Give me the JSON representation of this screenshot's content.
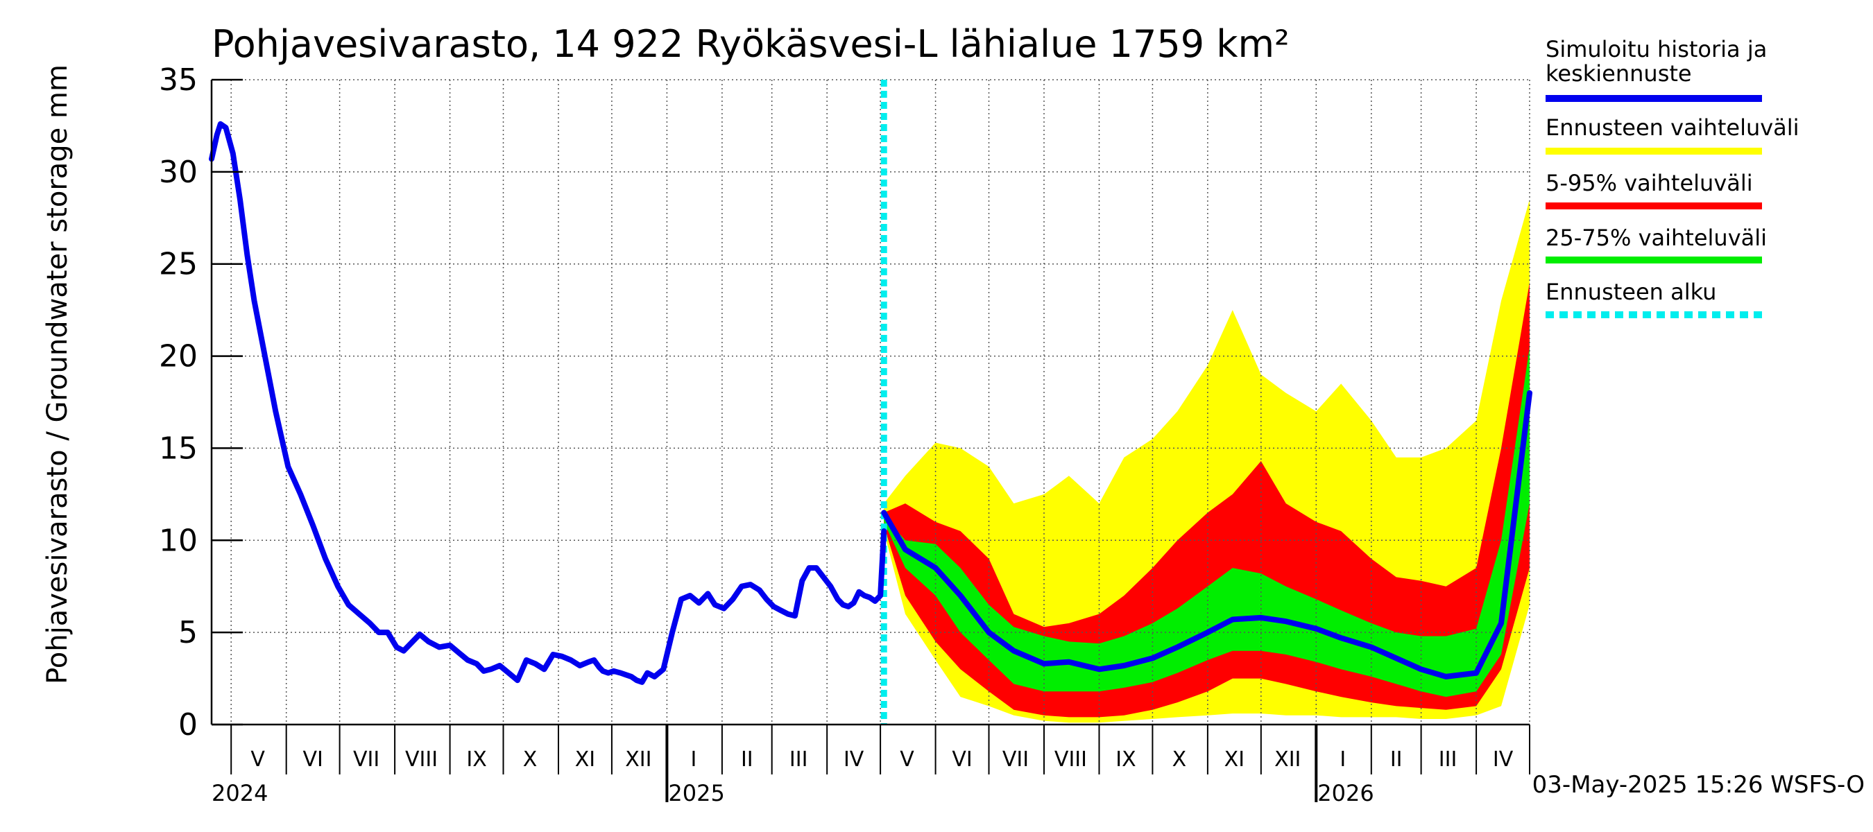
{
  "chart_data": {
    "type": "area",
    "title": "Pohjavesivarasto, 14 922 Ryökäsvesi-L lähialue 1759 km²",
    "ylabel": "Pohjavesivarasto / Groundwater storage   mm",
    "ylim": [
      0,
      35
    ],
    "yticks": [
      0,
      5,
      10,
      15,
      20,
      25,
      30,
      35
    ],
    "xlim": [
      "2024-04-20",
      "2026-05-01"
    ],
    "grid": true,
    "legend_position": "right",
    "footer": "03-May-2025 15:26 WSFS-O",
    "colors": {
      "history": "#0000ee",
      "range_full": "#ffff00",
      "range_5_95": "#ff0000",
      "range_25_75": "#00ee00",
      "forecast_start": "#00eeee"
    },
    "legend": [
      {
        "key": "history",
        "label": "Simuloitu historia ja keskiennuste",
        "lines": [
          "Simuloitu historia ja",
          "keskiennuste"
        ],
        "color": "#0000ee",
        "style": "solid"
      },
      {
        "key": "range_full",
        "label": "Ennusteen vaihteluväli",
        "lines": [
          "Ennusteen vaihteluväli"
        ],
        "color": "#ffff00",
        "style": "solid"
      },
      {
        "key": "range_5_95",
        "label": "5-95% vaihteluväli",
        "lines": [
          "5-95% vaihteluväli"
        ],
        "color": "#ff0000",
        "style": "solid"
      },
      {
        "key": "range_25_75",
        "label": "25-75% vaihteluväli",
        "lines": [
          "25-75% vaihteluväli"
        ],
        "color": "#00ee00",
        "style": "solid"
      },
      {
        "key": "forecast_start",
        "label": "Ennusteen alku",
        "lines": [
          "Ennusteen alku"
        ],
        "color": "#00eeee",
        "style": "dashed"
      }
    ],
    "month_labels": [
      {
        "label": "V",
        "date": "2024-05-16"
      },
      {
        "label": "VI",
        "date": "2024-06-16"
      },
      {
        "label": "VII",
        "date": "2024-07-16"
      },
      {
        "label": "VIII",
        "date": "2024-08-16"
      },
      {
        "label": "IX",
        "date": "2024-09-16"
      },
      {
        "label": "X",
        "date": "2024-10-16"
      },
      {
        "label": "XI",
        "date": "2024-11-16"
      },
      {
        "label": "XII",
        "date": "2024-12-16"
      },
      {
        "label": "I",
        "date": "2025-01-16"
      },
      {
        "label": "II",
        "date": "2025-02-15"
      },
      {
        "label": "III",
        "date": "2025-03-16"
      },
      {
        "label": "IV",
        "date": "2025-04-16"
      },
      {
        "label": "V",
        "date": "2025-05-16"
      },
      {
        "label": "VI",
        "date": "2025-06-16"
      },
      {
        "label": "VII",
        "date": "2025-07-16"
      },
      {
        "label": "VIII",
        "date": "2025-08-16"
      },
      {
        "label": "IX",
        "date": "2025-09-16"
      },
      {
        "label": "X",
        "date": "2025-10-16"
      },
      {
        "label": "XI",
        "date": "2025-11-16"
      },
      {
        "label": "XII",
        "date": "2025-12-16"
      },
      {
        "label": "I",
        "date": "2026-01-16"
      },
      {
        "label": "II",
        "date": "2026-02-15"
      },
      {
        "label": "III",
        "date": "2026-03-16"
      },
      {
        "label": "IV",
        "date": "2026-04-16"
      }
    ],
    "month_boundaries": [
      "2024-05-01",
      "2024-06-01",
      "2024-07-01",
      "2024-08-01",
      "2024-09-01",
      "2024-10-01",
      "2024-11-01",
      "2024-12-01",
      "2025-01-01",
      "2025-02-01",
      "2025-03-01",
      "2025-04-01",
      "2025-05-01",
      "2025-06-01",
      "2025-07-01",
      "2025-08-01",
      "2025-09-01",
      "2025-10-01",
      "2025-11-01",
      "2025-12-01",
      "2026-01-01",
      "2026-02-01",
      "2026-03-01",
      "2026-04-01",
      "2026-05-01"
    ],
    "year_labels": [
      {
        "label": "2024",
        "date": "2024-04-20"
      },
      {
        "label": "2025",
        "date": "2025-01-01"
      },
      {
        "label": "2026",
        "date": "2026-01-01"
      }
    ],
    "forecast_start": "2025-05-03",
    "series": {
      "history": {
        "name": "Simuloitu historia ja keskiennuste",
        "x": [
          "2024-04-20",
          "2024-04-23",
          "2024-04-25",
          "2024-04-28",
          "2024-05-02",
          "2024-05-06",
          "2024-05-10",
          "2024-05-14",
          "2024-05-20",
          "2024-05-26",
          "2024-06-02",
          "2024-06-09",
          "2024-06-16",
          "2024-06-23",
          "2024-06-30",
          "2024-07-06",
          "2024-07-12",
          "2024-07-18",
          "2024-07-23",
          "2024-07-28",
          "2024-08-02",
          "2024-08-06",
          "2024-08-10",
          "2024-08-15",
          "2024-08-20",
          "2024-08-26",
          "2024-09-01",
          "2024-09-06",
          "2024-09-11",
          "2024-09-16",
          "2024-09-20",
          "2024-09-24",
          "2024-09-29",
          "2024-10-04",
          "2024-10-09",
          "2024-10-14",
          "2024-10-19",
          "2024-10-24",
          "2024-10-29",
          "2024-11-03",
          "2024-11-08",
          "2024-11-13",
          "2024-11-18",
          "2024-11-21",
          "2024-11-24",
          "2024-11-26",
          "2024-11-29",
          "2024-12-02",
          "2024-12-06",
          "2024-12-09",
          "2024-12-12",
          "2024-12-15",
          "2024-12-18",
          "2024-12-21",
          "2024-12-25",
          "2024-12-30",
          "2025-01-04",
          "2025-01-09",
          "2025-01-14",
          "2025-01-19",
          "2025-01-24",
          "2025-01-28",
          "2025-02-02",
          "2025-02-07",
          "2025-02-12",
          "2025-02-17",
          "2025-02-22",
          "2025-02-26",
          "2025-03-02",
          "2025-03-06",
          "2025-03-10",
          "2025-03-14",
          "2025-03-18",
          "2025-03-22",
          "2025-03-26",
          "2025-03-30",
          "2025-04-03",
          "2025-04-07",
          "2025-04-10",
          "2025-04-13",
          "2025-04-16",
          "2025-04-19",
          "2025-04-22",
          "2025-04-25",
          "2025-04-28",
          "2025-05-01",
          "2025-05-03"
        ],
        "y": [
          30.7,
          32.0,
          32.6,
          32.4,
          31.0,
          28.5,
          25.5,
          23.0,
          20.0,
          17.0,
          14.0,
          12.5,
          10.8,
          9.0,
          7.5,
          6.5,
          6.0,
          5.5,
          5.0,
          5.0,
          4.2,
          4.0,
          4.4,
          4.9,
          4.5,
          4.2,
          4.3,
          3.9,
          3.5,
          3.3,
          2.9,
          3.0,
          3.2,
          2.8,
          2.4,
          3.5,
          3.3,
          3.0,
          3.8,
          3.7,
          3.5,
          3.2,
          3.4,
          3.5,
          3.1,
          2.9,
          2.8,
          2.9,
          2.8,
          2.7,
          2.6,
          2.4,
          2.3,
          2.8,
          2.6,
          3.0,
          5.0,
          6.8,
          7.0,
          6.6,
          7.1,
          6.5,
          6.3,
          6.8,
          7.5,
          7.6,
          7.3,
          6.8,
          6.4,
          6.2,
          6.0,
          5.9,
          7.8,
          8.5,
          8.5,
          8.0,
          7.5,
          6.8,
          6.5,
          6.4,
          6.6,
          7.2,
          7.0,
          6.9,
          6.7,
          7.0,
          10.5
        ]
      },
      "forecast_median": {
        "x": [
          "2025-05-03",
          "2025-05-15",
          "2025-06-01",
          "2025-06-15",
          "2025-07-01",
          "2025-07-15",
          "2025-08-01",
          "2025-08-15",
          "2025-09-01",
          "2025-09-15",
          "2025-10-01",
          "2025-10-15",
          "2025-11-01",
          "2025-11-15",
          "2025-12-01",
          "2025-12-15",
          "2026-01-01",
          "2026-01-15",
          "2026-02-01",
          "2026-02-15",
          "2026-03-01",
          "2026-03-15",
          "2026-04-01",
          "2026-04-15",
          "2026-05-01"
        ],
        "y": [
          11.5,
          9.5,
          8.5,
          7.0,
          5.0,
          4.0,
          3.3,
          3.4,
          3.0,
          3.2,
          3.6,
          4.2,
          5.0,
          5.7,
          5.8,
          5.6,
          5.2,
          4.7,
          4.2,
          3.6,
          3.0,
          2.6,
          2.8,
          5.5,
          18.0
        ]
      },
      "range_full": {
        "x": [
          "2025-05-03",
          "2025-05-15",
          "2025-06-01",
          "2025-06-15",
          "2025-07-01",
          "2025-07-15",
          "2025-08-01",
          "2025-08-15",
          "2025-09-01",
          "2025-09-15",
          "2025-10-01",
          "2025-10-15",
          "2025-11-01",
          "2025-11-15",
          "2025-12-01",
          "2025-12-15",
          "2026-01-01",
          "2026-01-15",
          "2026-02-01",
          "2026-02-15",
          "2026-03-01",
          "2026-03-15",
          "2026-04-01",
          "2026-04-15",
          "2026-05-01"
        ],
        "low": [
          10.5,
          6.0,
          3.5,
          1.5,
          1.0,
          0.5,
          0.2,
          0.1,
          0.1,
          0.2,
          0.3,
          0.4,
          0.5,
          0.6,
          0.6,
          0.5,
          0.5,
          0.4,
          0.4,
          0.4,
          0.3,
          0.3,
          0.5,
          1.0,
          6.5
        ],
        "high": [
          12.0,
          13.5,
          15.3,
          15.0,
          14.0,
          12.0,
          12.5,
          13.5,
          12.0,
          14.5,
          15.5,
          17.0,
          19.5,
          22.5,
          19.0,
          18.0,
          17.0,
          18.5,
          16.5,
          14.5,
          14.5,
          15.0,
          16.5,
          23.0,
          28.5
        ]
      },
      "range_5_95": {
        "x": [
          "2025-05-03",
          "2025-05-15",
          "2025-06-01",
          "2025-06-15",
          "2025-07-01",
          "2025-07-15",
          "2025-08-01",
          "2025-08-15",
          "2025-09-01",
          "2025-09-15",
          "2025-10-01",
          "2025-10-15",
          "2025-11-01",
          "2025-11-15",
          "2025-12-01",
          "2025-12-15",
          "2026-01-01",
          "2026-01-15",
          "2026-02-01",
          "2026-02-15",
          "2026-03-01",
          "2026-03-15",
          "2026-04-01",
          "2026-04-15",
          "2026-05-01"
        ],
        "low": [
          10.8,
          7.0,
          4.5,
          3.0,
          1.8,
          0.8,
          0.5,
          0.4,
          0.4,
          0.5,
          0.8,
          1.2,
          1.8,
          2.5,
          2.5,
          2.2,
          1.8,
          1.5,
          1.2,
          1.0,
          0.9,
          0.8,
          1.0,
          3.0,
          8.5
        ],
        "high": [
          11.5,
          12.0,
          11.0,
          10.5,
          9.0,
          6.0,
          5.3,
          5.5,
          6.0,
          7.0,
          8.5,
          10.0,
          11.5,
          12.5,
          14.3,
          12.0,
          11.0,
          10.5,
          9.0,
          8.0,
          7.8,
          7.5,
          8.5,
          15.0,
          24.0
        ]
      },
      "range_25_75": {
        "x": [
          "2025-05-03",
          "2025-05-15",
          "2025-06-01",
          "2025-06-15",
          "2025-07-01",
          "2025-07-15",
          "2025-08-01",
          "2025-08-15",
          "2025-09-01",
          "2025-09-15",
          "2025-10-01",
          "2025-10-15",
          "2025-11-01",
          "2025-11-15",
          "2025-12-01",
          "2025-12-15",
          "2026-01-01",
          "2026-01-15",
          "2026-02-01",
          "2026-02-15",
          "2026-03-01",
          "2026-03-15",
          "2026-04-01",
          "2026-04-15",
          "2026-05-01"
        ],
        "low": [
          11.0,
          8.5,
          7.0,
          5.0,
          3.5,
          2.2,
          1.8,
          1.8,
          1.8,
          2.0,
          2.3,
          2.8,
          3.5,
          4.0,
          4.0,
          3.8,
          3.4,
          3.0,
          2.6,
          2.2,
          1.8,
          1.5,
          1.8,
          3.8,
          12.0
        ],
        "high": [
          11.3,
          10.0,
          9.8,
          8.5,
          6.5,
          5.3,
          4.8,
          4.5,
          4.4,
          4.8,
          5.5,
          6.3,
          7.5,
          8.5,
          8.2,
          7.5,
          6.8,
          6.2,
          5.5,
          5.0,
          4.8,
          4.8,
          5.2,
          10.0,
          20.5
        ]
      }
    }
  }
}
